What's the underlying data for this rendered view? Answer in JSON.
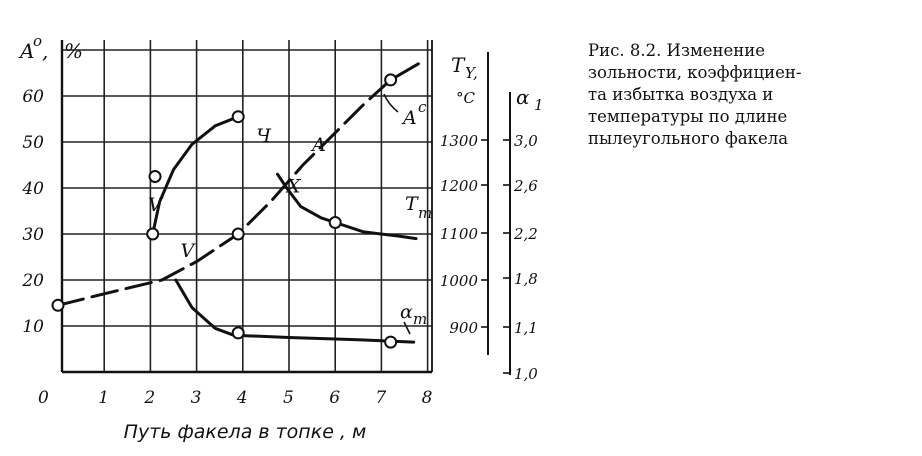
{
  "caption": {
    "lines": [
      "Рис.    8.2.   Изменение",
      "зольности,  коэффициен-",
      "та  избытка  воздуха  и",
      "температуры  по  длине",
      "пылеугольного факела"
    ]
  },
  "chart_data": {
    "type": "line",
    "xlabel": "Путь факела в топке , м",
    "x_ticks": [
      "0",
      "1",
      "2",
      "3",
      "4",
      "5",
      "6",
      "7",
      "8"
    ],
    "xlim": [
      0,
      8
    ],
    "y_left": {
      "label_main": "A",
      "label_sup": "o",
      "label_sep": ",",
      "label_unit": "%",
      "ticks": [
        "10",
        "20",
        "30",
        "40",
        "50",
        "60"
      ],
      "ylim": [
        0,
        70
      ]
    },
    "y_temp": {
      "label": "T",
      "label_sub": "Y,",
      "unit": "°C",
      "ticks": [
        "900",
        "1000",
        "1100",
        "1200",
        "1300"
      ]
    },
    "y_alpha": {
      "label": "α",
      "label_sub": "1",
      "ticks": [
        "1,0",
        "1,1",
        "1,8",
        "2,2",
        "2,6",
        "3,0"
      ]
    },
    "series": [
      {
        "name": "A",
        "label_sup": "c",
        "dashed": true,
        "points": [
          [
            0,
            14.5
          ],
          [
            1.0,
            17
          ],
          [
            2.25,
            20
          ],
          [
            3.0,
            24
          ],
          [
            3.9,
            30
          ],
          [
            4.6,
            37
          ],
          [
            5.3,
            45
          ],
          [
            6.0,
            52
          ],
          [
            6.6,
            58
          ],
          [
            7.2,
            63.5
          ],
          [
            7.8,
            67
          ]
        ],
        "markers": [
          [
            0,
            14.5
          ],
          [
            3.9,
            30
          ],
          [
            7.2,
            63.5
          ]
        ]
      },
      {
        "name": "Ч",
        "dashed": false,
        "points": [
          [
            2.05,
            30
          ],
          [
            2.2,
            37
          ],
          [
            2.5,
            44
          ],
          [
            2.9,
            49.5
          ],
          [
            3.4,
            53.5
          ],
          [
            3.9,
            55.5
          ]
        ],
        "markers": [
          [
            2.05,
            30
          ],
          [
            2.1,
            42.5
          ],
          [
            3.9,
            55.5
          ]
        ]
      },
      {
        "name": "T",
        "label_sub": "т",
        "dashed": false,
        "points": [
          [
            4.75,
            43
          ],
          [
            4.95,
            40
          ],
          [
            5.25,
            36
          ],
          [
            5.7,
            33.5
          ],
          [
            6.0,
            32.5
          ],
          [
            6.6,
            30.5
          ],
          [
            7.4,
            29.5
          ],
          [
            7.75,
            29
          ]
        ],
        "markers": [
          [
            6.0,
            32.5
          ]
        ]
      },
      {
        "name": "α",
        "label_sub": "т",
        "dashed": false,
        "points": [
          [
            2.55,
            20
          ],
          [
            2.9,
            14
          ],
          [
            3.4,
            9.5
          ],
          [
            3.8,
            8
          ],
          [
            5.0,
            7.5
          ],
          [
            6.5,
            7
          ],
          [
            7.7,
            6.5
          ]
        ],
        "markers": [
          [
            3.9,
            8.5
          ],
          [
            7.2,
            6.5
          ]
        ]
      }
    ],
    "grid": true,
    "letters": [
      {
        "text": "V",
        "x": 2.1,
        "y": 35
      },
      {
        "text": "V",
        "x": 2.8,
        "y": 25
      },
      {
        "text": "Ч",
        "x": 4.45,
        "y": 50
      },
      {
        "text": "A",
        "x": 5.65,
        "y": 48
      },
      {
        "text": "X",
        "x": 5.1,
        "y": 39
      }
    ]
  }
}
